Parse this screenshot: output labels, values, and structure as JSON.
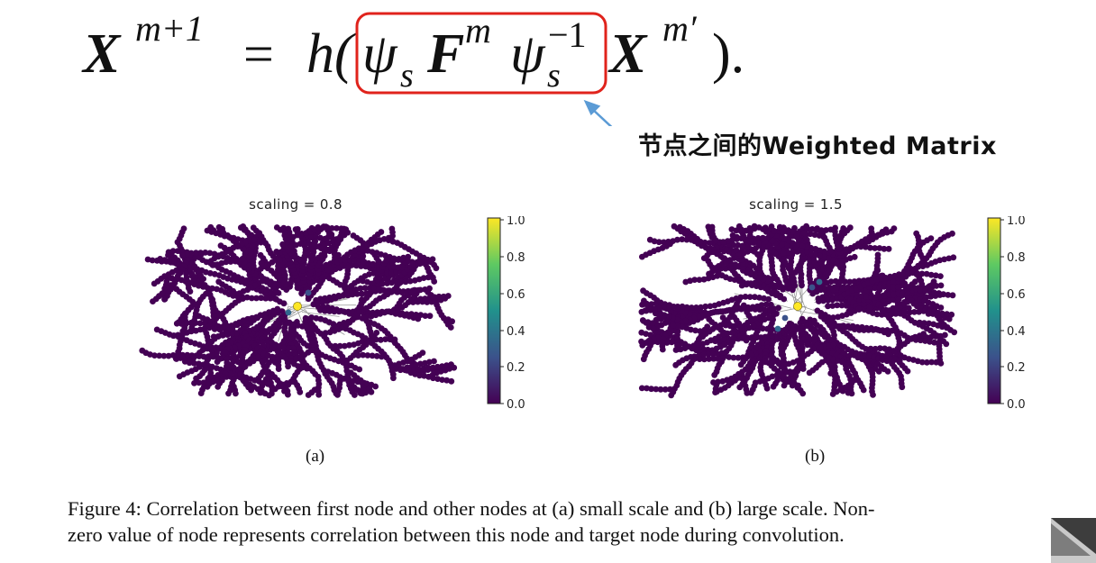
{
  "equation": {
    "lhs_base": "X",
    "lhs_sup": "m+1",
    "equals": "=",
    "func": "h(",
    "psi": "ψ",
    "psi_sub": "s",
    "f_base": "F",
    "f_sup": "m",
    "psi_inv_sup": "−1",
    "x_base": "X",
    "x_sup": "m′",
    "close": ")."
  },
  "annotation": {
    "text": "节点之间的Weighted Matrix",
    "box_color": "#e0231c",
    "arrow_color": "#5b9bd5"
  },
  "figures": [
    {
      "title": "scaling = 0.8",
      "label": "(a)",
      "colorbar_ticks": [
        "1.0",
        "0.8",
        "0.6",
        "0.4",
        "0.2",
        "0.0"
      ]
    },
    {
      "title": "scaling = 1.5",
      "label": "(b)",
      "colorbar_ticks": [
        "1.0",
        "0.8",
        "0.6",
        "0.4",
        "0.2",
        "0.0"
      ]
    }
  ],
  "colors": {
    "node": "#440154",
    "target_node": "#fde725",
    "edge": "#9a9a9a"
  },
  "caption": {
    "line1": "Figure 4: Correlation between first node and other nodes at (a) small scale and (b) large scale. Non-",
    "line2": "zero value of node represents correlation between this node and target node during convolution."
  }
}
